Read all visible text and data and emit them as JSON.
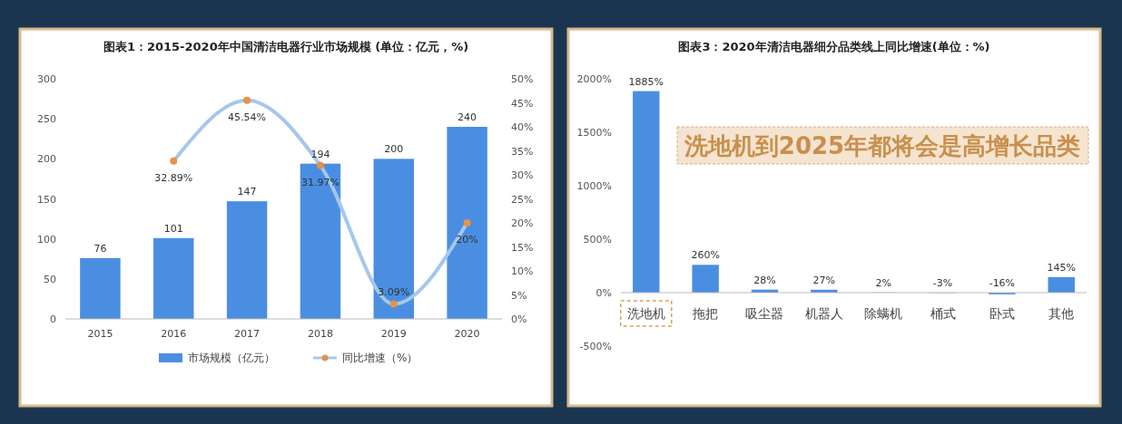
{
  "chart_data": [
    {
      "type": "bar",
      "title": "图表1：2015-2020年中国清洁电器行业市场规模 (单位：亿元，%)",
      "categories": [
        "2015",
        "2016",
        "2017",
        "2018",
        "2019",
        "2020"
      ],
      "ylim": [
        0,
        300
      ],
      "yticks": [
        0,
        50,
        100,
        150,
        200,
        250,
        300
      ],
      "y2lim": [
        0,
        50
      ],
      "y2ticks": [
        {
          "value": 0,
          "label": "0%"
        },
        {
          "value": 5,
          "label": "5%"
        },
        {
          "value": 10,
          "label": "10%"
        },
        {
          "value": 15,
          "label": "15%"
        },
        {
          "value": 20,
          "label": "20%"
        },
        {
          "value": 25,
          "label": "25%"
        },
        {
          "value": 30,
          "label": "30%"
        },
        {
          "value": 35,
          "label": "35%"
        },
        {
          "value": 40,
          "label": "40%"
        },
        {
          "value": 45,
          "label": "45%"
        },
        {
          "value": 50,
          "label": "50%"
        }
      ],
      "data_labels": true,
      "legend": "bottom",
      "grid": false,
      "series": [
        {
          "name": "市场规模（亿元）",
          "color": "#4a8ee2",
          "values": [
            76,
            101,
            147,
            194,
            200,
            240
          ]
        },
        {
          "name": "同比增速（%）",
          "type": "line",
          "axis": "y2",
          "color": "#a4c8ec",
          "colors": [
            null,
            "#e8914a",
            "#e8914a",
            "#e8914a",
            "#e8914a",
            "#e8914a"
          ],
          "marker": "circle",
          "values": [
            null,
            32.89,
            45.54,
            31.97,
            3.09,
            20
          ],
          "value_labels": [
            null,
            "32.89%",
            "45.54%",
            "31.97%",
            "3.09%",
            "20%"
          ]
        }
      ]
    },
    {
      "type": "bar",
      "title": "图表3：2020年清洁电器细分品类线上同比增速(单位：%)",
      "categories": [
        "洗地机",
        "拖把",
        "吸尘器",
        "机器人",
        "除螨机",
        "桶式",
        "卧式",
        "其他"
      ],
      "ylim": [
        -500,
        2000
      ],
      "yticks": [
        {
          "value": -500,
          "label": "-500%"
        },
        {
          "value": 0,
          "label": "0%"
        },
        {
          "value": 500,
          "label": "500%"
        },
        {
          "value": 1000,
          "label": "1000%"
        },
        {
          "value": 1500,
          "label": "1500%"
        },
        {
          "value": 2000,
          "label": "2000%"
        }
      ],
      "grid": false,
      "legend": false,
      "series": [
        {
          "color": "#4a8ee2",
          "values": [
            1885,
            260,
            28,
            27,
            2,
            -3,
            -16,
            145
          ],
          "value_labels": [
            "1885%",
            "260%",
            "28%",
            "27%",
            "2%",
            "-3%",
            "-16%",
            "145%"
          ]
        }
      ],
      "annotations": [
        "洗地机到2025年都将会是高增长品类"
      ]
    }
  ]
}
